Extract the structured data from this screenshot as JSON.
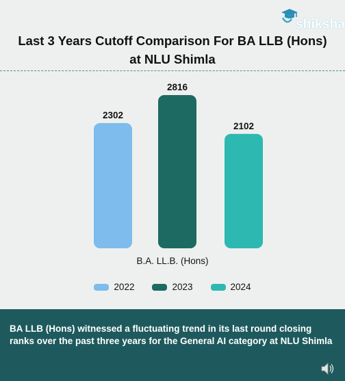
{
  "logo": {
    "text": "shiksha"
  },
  "chart_data": {
    "type": "bar",
    "title_lines": [
      "Last 3 Years Cutoff Comparison  For BA LLB (Hons)",
      "at NLU Shimla"
    ],
    "xlabel": "B.A. LL.B. (Hons)",
    "ylabel": "",
    "ylim": [
      0,
      2816
    ],
    "categories": [
      "B.A. LL.B. (Hons)"
    ],
    "series": [
      {
        "name": "2022",
        "values": [
          2302
        ],
        "color": "#7dbcec"
      },
      {
        "name": "2023",
        "values": [
          2816
        ],
        "color": "#1d6a62"
      },
      {
        "name": "2024",
        "values": [
          2102
        ],
        "color": "#2eb8b2"
      }
    ],
    "grid": false,
    "legend": "bottom"
  },
  "caption": {
    "text": "BA LLB (Hons) witnessed a fluctuating trend in its last round closing ranks over the past three years for the General AI category at NLU Shimla"
  },
  "icons": {
    "logo": "graduate-cap-icon",
    "audio": "speaker-icon"
  },
  "colors": {
    "caption_bg": "#1e5a5d",
    "divider": "#3c9a6e"
  }
}
